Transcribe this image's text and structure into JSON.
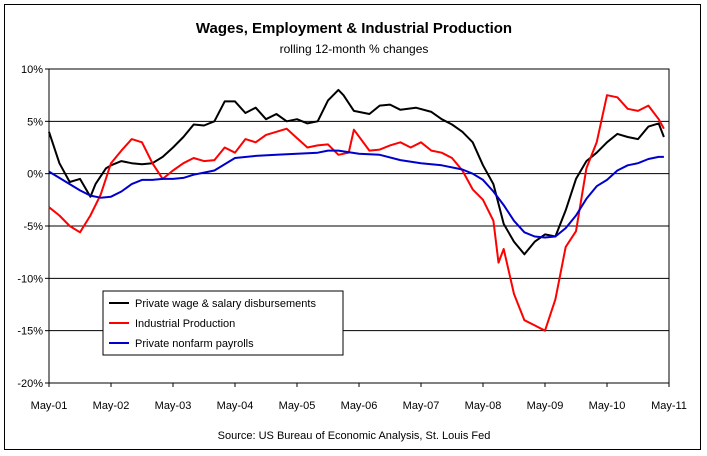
{
  "chart_data": {
    "type": "line",
    "title": "Wages, Employment & Industrial Production",
    "subtitle": "rolling 12-month % changes",
    "source": "Source: US Bureau of Economic Analysis, St. Louis Fed",
    "xlabel": "",
    "ylabel": "",
    "xlim": [
      2001.333,
      2011.333
    ],
    "ylim": [
      -20,
      10
    ],
    "yticks": [
      10,
      5,
      0,
      -5,
      -10,
      -15,
      -20
    ],
    "ytick_labels": [
      "10%",
      "5%",
      "0%",
      "-5%",
      "-10%",
      "-15%",
      "-20%"
    ],
    "xticks": [
      2001.333,
      2002.333,
      2003.333,
      2004.333,
      2005.333,
      2006.333,
      2007.333,
      2008.333,
      2009.333,
      2010.333,
      2011.333
    ],
    "xtick_labels": [
      "May-01",
      "May-02",
      "May-03",
      "May-04",
      "May-05",
      "May-06",
      "May-07",
      "May-08",
      "May-09",
      "May-10",
      "May-11"
    ],
    "grid": "horizontal",
    "legend_position": "bottom-left",
    "colors": {
      "wages": "#000000",
      "industrial": "#ff0000",
      "payrolls": "#0000cc"
    },
    "series": [
      {
        "name": "Private wage & salary disbursements",
        "color": "#000000",
        "x": [
          2001.333,
          2001.5,
          2001.667,
          2001.833,
          2002.0,
          2002.083,
          2002.25,
          2002.333,
          2002.5,
          2002.667,
          2002.833,
          2003.0,
          2003.167,
          2003.333,
          2003.5,
          2003.667,
          2003.833,
          2004.0,
          2004.167,
          2004.333,
          2004.5,
          2004.667,
          2004.833,
          2005.0,
          2005.167,
          2005.333,
          2005.5,
          2005.667,
          2005.833,
          2006.0,
          2006.083,
          2006.25,
          2006.5,
          2006.667,
          2006.833,
          2007.0,
          2007.25,
          2007.5,
          2007.667,
          2007.833,
          2008.0,
          2008.167,
          2008.333,
          2008.5,
          2008.667,
          2008.833,
          2009.0,
          2009.167,
          2009.333,
          2009.5,
          2009.667,
          2009.833,
          2010.0,
          2010.167,
          2010.333,
          2010.5,
          2010.667,
          2010.833,
          2011.0,
          2011.167,
          2011.25
        ],
        "values": [
          4.0,
          1.0,
          -0.8,
          -0.5,
          -2.2,
          -1.0,
          0.5,
          0.8,
          1.2,
          1.0,
          0.9,
          1.0,
          1.6,
          2.5,
          3.5,
          4.7,
          4.6,
          5.0,
          6.9,
          6.9,
          5.8,
          6.3,
          5.2,
          5.7,
          5.0,
          5.2,
          4.8,
          5.0,
          7.0,
          8.0,
          7.5,
          6.0,
          5.7,
          6.5,
          6.6,
          6.1,
          6.3,
          5.9,
          5.2,
          4.7,
          4.0,
          3.0,
          0.8,
          -1.0,
          -4.8,
          -6.5,
          -7.7,
          -6.5,
          -5.8,
          -6.0,
          -3.5,
          -0.5,
          1.2,
          2.0,
          3.0,
          3.8,
          3.5,
          3.3,
          4.5,
          4.8,
          3.5
        ]
      },
      {
        "name": "Industrial Production",
        "color": "#ff0000",
        "x": [
          2001.333,
          2001.5,
          2001.667,
          2001.833,
          2002.0,
          2002.167,
          2002.333,
          2002.5,
          2002.667,
          2002.833,
          2003.0,
          2003.167,
          2003.333,
          2003.5,
          2003.667,
          2003.833,
          2004.0,
          2004.167,
          2004.333,
          2004.5,
          2004.667,
          2004.833,
          2005.0,
          2005.167,
          2005.333,
          2005.5,
          2005.667,
          2005.833,
          2006.0,
          2006.167,
          2006.25,
          2006.5,
          2006.667,
          2006.833,
          2007.0,
          2007.167,
          2007.333,
          2007.5,
          2007.667,
          2007.833,
          2008.0,
          2008.167,
          2008.333,
          2008.5,
          2008.583,
          2008.667,
          2008.833,
          2009.0,
          2009.167,
          2009.333,
          2009.5,
          2009.667,
          2009.833,
          2010.0,
          2010.167,
          2010.333,
          2010.5,
          2010.667,
          2010.833,
          2011.0,
          2011.167,
          2011.25
        ],
        "values": [
          -3.2,
          -4.0,
          -5.0,
          -5.6,
          -4.0,
          -2.0,
          1.0,
          2.2,
          3.3,
          3.0,
          1.0,
          -0.5,
          0.3,
          1.0,
          1.5,
          1.2,
          1.3,
          2.5,
          2.0,
          3.3,
          3.0,
          3.7,
          4.0,
          4.3,
          3.4,
          2.5,
          2.7,
          2.8,
          1.8,
          2.0,
          4.2,
          2.2,
          2.3,
          2.7,
          3.0,
          2.5,
          3.0,
          2.2,
          2.0,
          1.5,
          0.3,
          -1.5,
          -2.5,
          -4.5,
          -8.5,
          -7.2,
          -11.5,
          -14.0,
          -14.5,
          -15.0,
          -12.0,
          -7.0,
          -5.5,
          0.5,
          3.0,
          7.5,
          7.3,
          6.2,
          6.0,
          6.5,
          5.2,
          4.3
        ]
      },
      {
        "name": "Private nonfarm payrolls",
        "color": "#0000cc",
        "x": [
          2001.333,
          2001.5,
          2001.667,
          2001.833,
          2002.0,
          2002.167,
          2002.333,
          2002.5,
          2002.667,
          2002.833,
          2003.0,
          2003.167,
          2003.333,
          2003.5,
          2003.667,
          2003.833,
          2004.0,
          2004.333,
          2004.667,
          2005.0,
          2005.333,
          2005.667,
          2005.833,
          2006.0,
          2006.333,
          2006.667,
          2007.0,
          2007.333,
          2007.667,
          2008.0,
          2008.167,
          2008.333,
          2008.5,
          2008.667,
          2008.833,
          2009.0,
          2009.167,
          2009.333,
          2009.5,
          2009.667,
          2009.833,
          2010.0,
          2010.167,
          2010.333,
          2010.5,
          2010.667,
          2010.833,
          2011.0,
          2011.167,
          2011.25
        ],
        "values": [
          0.2,
          -0.4,
          -1.0,
          -1.6,
          -2.1,
          -2.3,
          -2.2,
          -1.7,
          -1.0,
          -0.6,
          -0.6,
          -0.5,
          -0.5,
          -0.4,
          -0.1,
          0.1,
          0.3,
          1.5,
          1.7,
          1.8,
          1.9,
          2.0,
          2.2,
          2.2,
          1.9,
          1.8,
          1.3,
          1.0,
          0.8,
          0.4,
          0.0,
          -0.6,
          -1.7,
          -3.0,
          -4.5,
          -5.6,
          -6.0,
          -6.1,
          -6.0,
          -5.2,
          -4.0,
          -2.4,
          -1.2,
          -0.6,
          0.3,
          0.8,
          1.0,
          1.4,
          1.6,
          1.6
        ]
      }
    ]
  }
}
